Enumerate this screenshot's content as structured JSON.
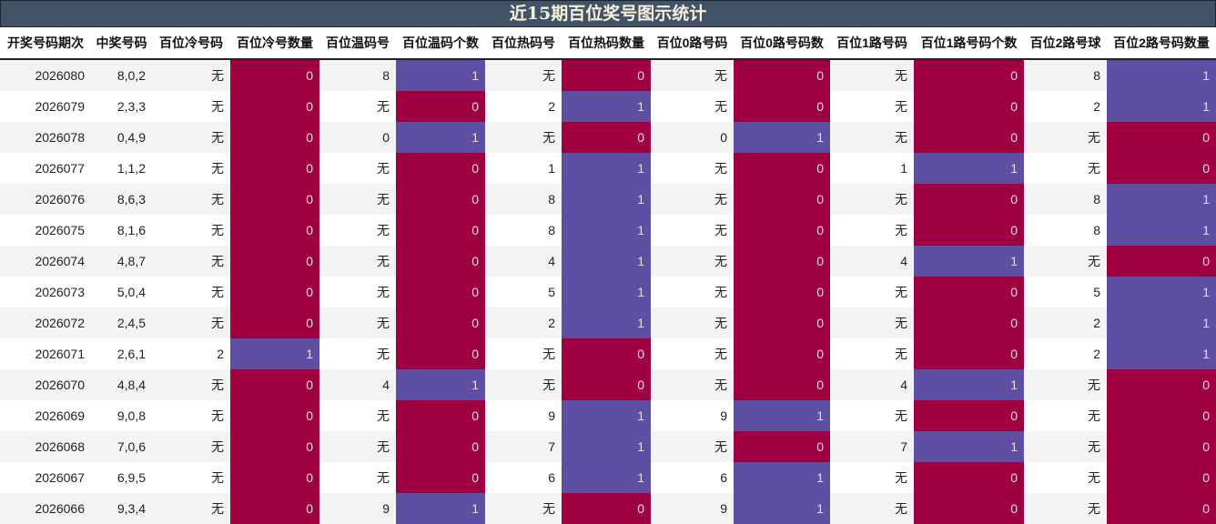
{
  "title": "近15期百位奖号图示统计",
  "colors": {
    "title_bg": "#435366",
    "title_text": "#f5efdc",
    "count_zero_bg": "#9e0041",
    "count_one_bg": "#5e4fa2",
    "row_alt_bg": "#f3f3f3",
    "row_bg": "#ffffff"
  },
  "columns": [
    "开奖号码期次",
    "中奖号码",
    "百位冷号码",
    "百位冷号数量",
    "百位温码号",
    "百位温码个数",
    "百位热码号",
    "百位热码数量",
    "百位0路号码",
    "百位0路号码数",
    "百位1路号码",
    "百位1路号码个数",
    "百位2路号球",
    "百位2路号码数量"
  ],
  "rows": [
    [
      "2026080",
      "8,0,2",
      "无",
      "0",
      "8",
      "1",
      "无",
      "0",
      "无",
      "0",
      "无",
      "0",
      "8",
      "1"
    ],
    [
      "2026079",
      "2,3,3",
      "无",
      "0",
      "无",
      "0",
      "2",
      "1",
      "无",
      "0",
      "无",
      "0",
      "2",
      "1"
    ],
    [
      "2026078",
      "0,4,9",
      "无",
      "0",
      "0",
      "1",
      "无",
      "0",
      "0",
      "1",
      "无",
      "0",
      "无",
      "0"
    ],
    [
      "2026077",
      "1,1,2",
      "无",
      "0",
      "无",
      "0",
      "1",
      "1",
      "无",
      "0",
      "1",
      "1",
      "无",
      "0"
    ],
    [
      "2026076",
      "8,6,3",
      "无",
      "0",
      "无",
      "0",
      "8",
      "1",
      "无",
      "0",
      "无",
      "0",
      "8",
      "1"
    ],
    [
      "2026075",
      "8,1,6",
      "无",
      "0",
      "无",
      "0",
      "8",
      "1",
      "无",
      "0",
      "无",
      "0",
      "8",
      "1"
    ],
    [
      "2026074",
      "4,8,7",
      "无",
      "0",
      "无",
      "0",
      "4",
      "1",
      "无",
      "0",
      "4",
      "1",
      "无",
      "0"
    ],
    [
      "2026073",
      "5,0,4",
      "无",
      "0",
      "无",
      "0",
      "5",
      "1",
      "无",
      "0",
      "无",
      "0",
      "5",
      "1"
    ],
    [
      "2026072",
      "2,4,5",
      "无",
      "0",
      "无",
      "0",
      "2",
      "1",
      "无",
      "0",
      "无",
      "0",
      "2",
      "1"
    ],
    [
      "2026071",
      "2,6,1",
      "2",
      "1",
      "无",
      "0",
      "无",
      "0",
      "无",
      "0",
      "无",
      "0",
      "2",
      "1"
    ],
    [
      "2026070",
      "4,8,4",
      "无",
      "0",
      "4",
      "1",
      "无",
      "0",
      "无",
      "0",
      "4",
      "1",
      "无",
      "0"
    ],
    [
      "2026069",
      "9,0,8",
      "无",
      "0",
      "无",
      "0",
      "9",
      "1",
      "9",
      "1",
      "无",
      "0",
      "无",
      "0"
    ],
    [
      "2026068",
      "7,0,6",
      "无",
      "0",
      "无",
      "0",
      "7",
      "1",
      "无",
      "0",
      "7",
      "1",
      "无",
      "0"
    ],
    [
      "2026067",
      "6,9,5",
      "无",
      "0",
      "无",
      "0",
      "6",
      "1",
      "6",
      "1",
      "无",
      "0",
      "无",
      "0"
    ],
    [
      "2026066",
      "9,3,4",
      "无",
      "0",
      "9",
      "1",
      "无",
      "0",
      "9",
      "1",
      "无",
      "0",
      "无",
      "0"
    ]
  ]
}
